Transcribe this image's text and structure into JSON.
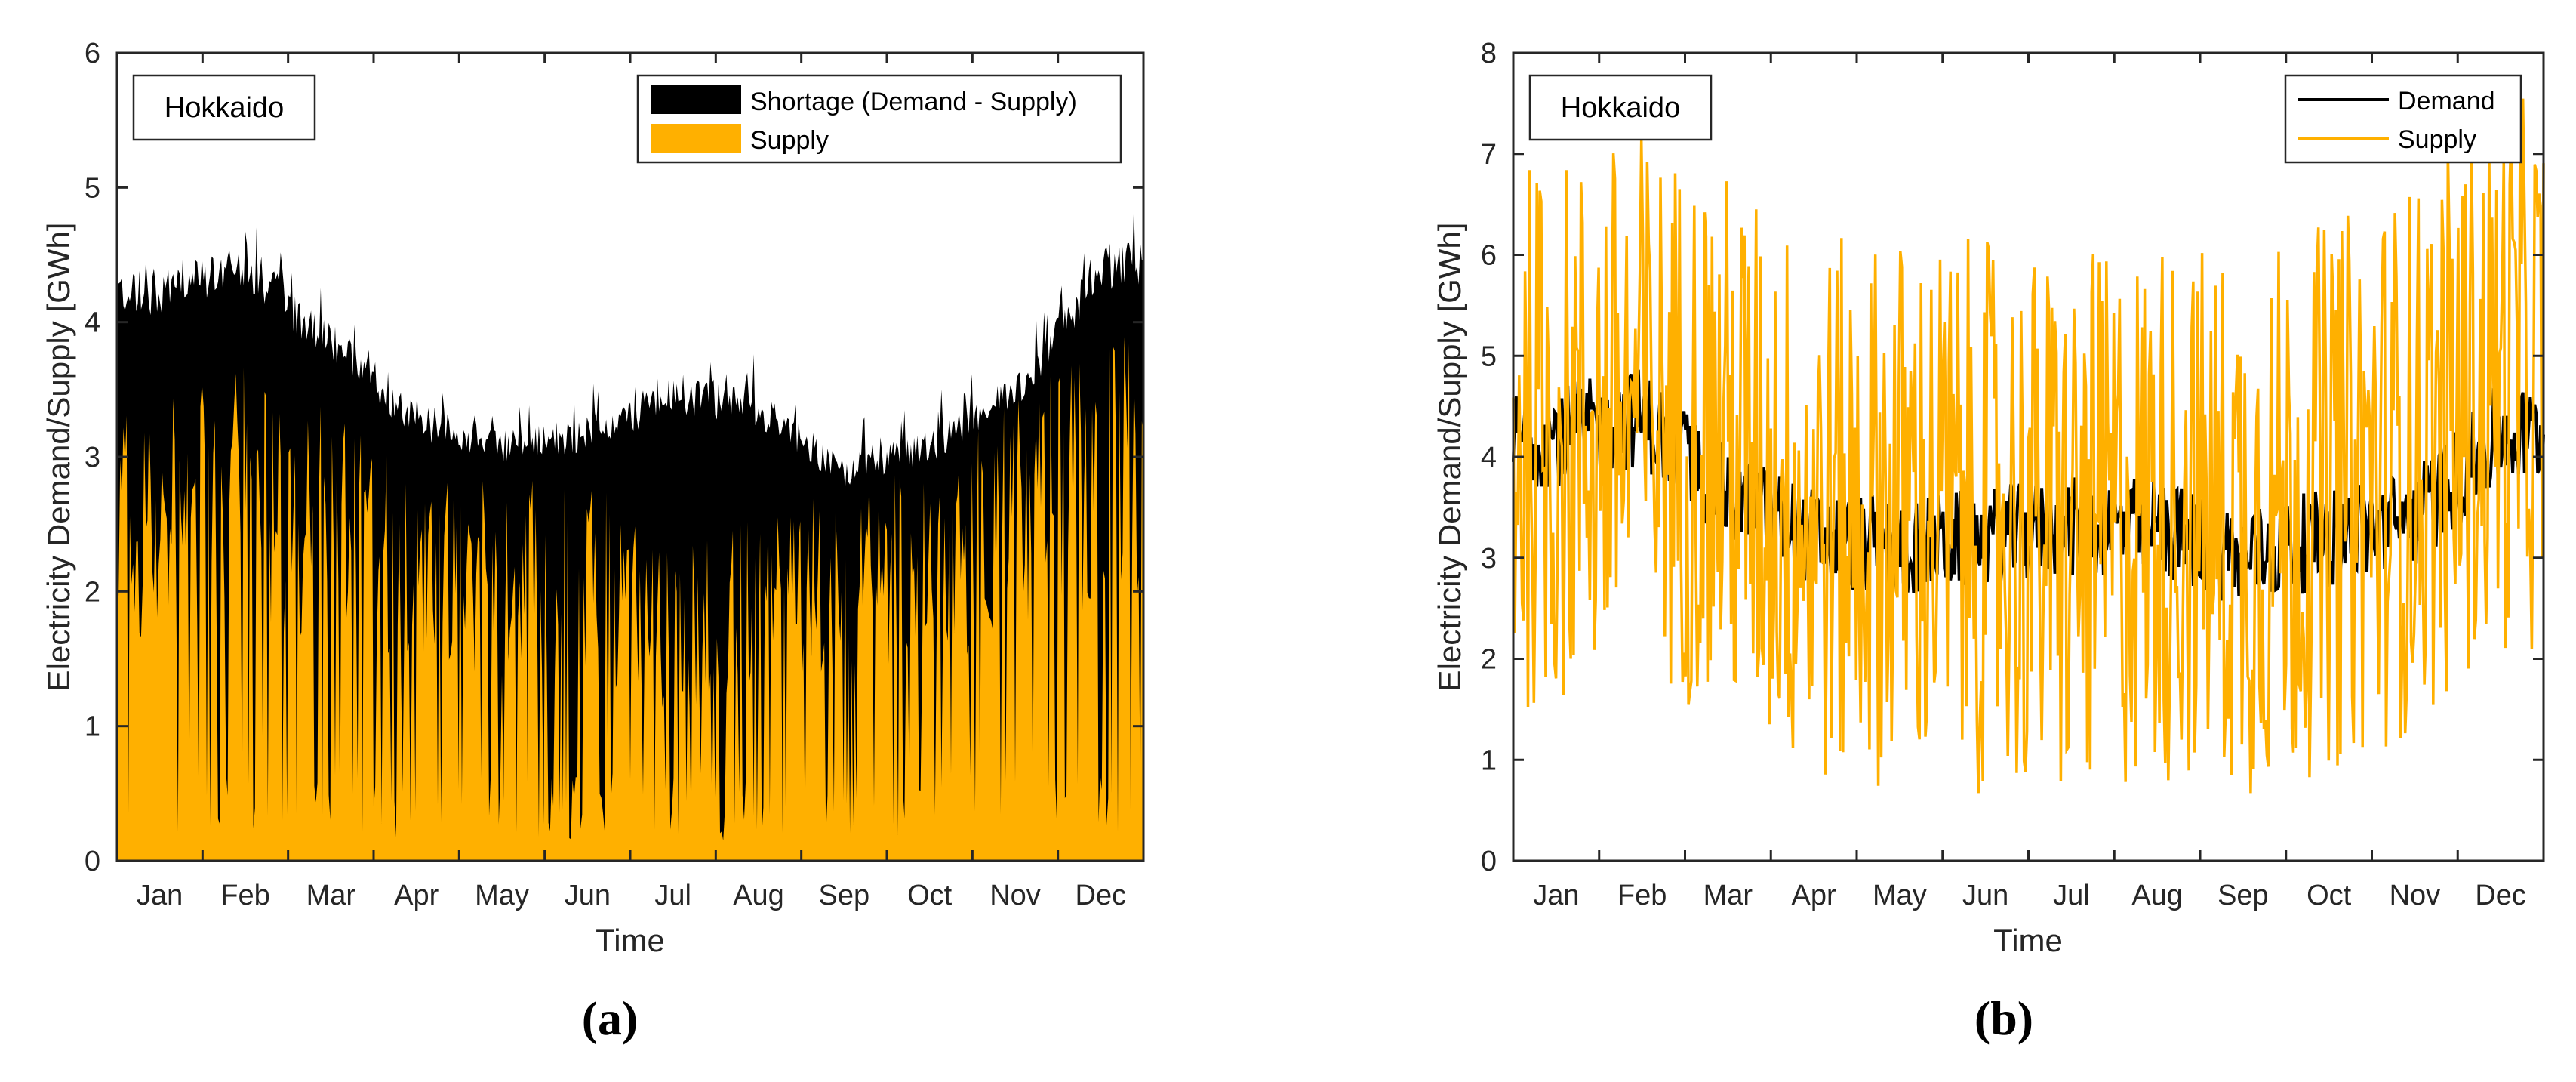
{
  "chart_data": [
    {
      "id": "a",
      "type": "area",
      "stacked": true,
      "caption": "(a)",
      "region_label": "Hokkaido",
      "xlabel": "Time",
      "ylabel": "Electricity Demand/Supply [GWh]",
      "ylim": [
        0,
        6
      ],
      "yticks": [
        "0",
        "1",
        "2",
        "3",
        "4",
        "5",
        "6"
      ],
      "categories": [
        "Jan",
        "Feb",
        "Mar",
        "Apr",
        "May",
        "Jun",
        "Jul",
        "Aug",
        "Sep",
        "Oct",
        "Nov",
        "Dec"
      ],
      "legend_position": "top-right",
      "series": [
        {
          "name": "Shortage (Demand - Supply)",
          "color": "#000000",
          "demand_envelope": [
            4.4,
            4.6,
            4.0,
            3.4,
            3.2,
            3.3,
            3.6,
            3.5,
            3.0,
            3.2,
            3.6,
            4.6
          ]
        },
        {
          "name": "Supply",
          "color": "#FFB000",
          "typical": [
            3.0,
            3.2,
            2.9,
            2.6,
            2.5,
            2.5,
            2.0,
            2.3,
            2.4,
            2.6,
            3.0,
            3.4
          ]
        }
      ]
    },
    {
      "id": "b",
      "type": "line",
      "caption": "(b)",
      "region_label": "Hokkaido",
      "xlabel": "Time",
      "ylabel": "Electricity Demand/Supply [GWh]",
      "ylim": [
        0,
        8
      ],
      "yticks": [
        "0",
        "1",
        "2",
        "3",
        "4",
        "5",
        "6",
        "7",
        "8"
      ],
      "categories": [
        "Jan",
        "Feb",
        "Mar",
        "Apr",
        "May",
        "Jun",
        "Jul",
        "Aug",
        "Sep",
        "Oct",
        "Nov",
        "Dec"
      ],
      "legend_position": "top-right",
      "series": [
        {
          "name": "Demand",
          "color": "#000000",
          "monthly": [
            4.2,
            4.4,
            3.6,
            3.2,
            3.1,
            3.2,
            3.3,
            3.3,
            3.0,
            3.2,
            3.4,
            4.2
          ]
        },
        {
          "name": "Supply",
          "color": "#FFB000",
          "monthly": [
            4.2,
            4.5,
            4.1,
            3.4,
            3.5,
            3.4,
            3.2,
            3.5,
            3.3,
            3.6,
            4.0,
            4.8
          ]
        }
      ]
    }
  ]
}
